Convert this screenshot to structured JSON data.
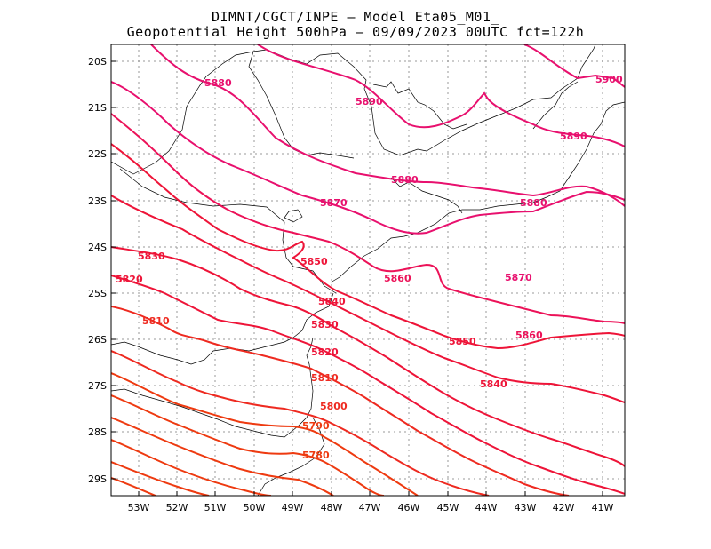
{
  "title_line1": "DIMNT/CGCT/INPE –  Model Eta05_M01_",
  "title_line2": "Geopotential Height 500hPa –  09/09/2023 00UTC fct=122h",
  "lat_ticks": [
    "20S",
    "21S",
    "22S",
    "23S",
    "24S",
    "25S",
    "26S",
    "27S",
    "28S",
    "29S"
  ],
  "lon_ticks": [
    "53W",
    "52W",
    "51W",
    "50W",
    "49W",
    "48W",
    "47W",
    "46W",
    "45W",
    "44W",
    "43W",
    "42W",
    "41W"
  ],
  "contour_labels": {
    "c5900": "5900",
    "c5890a": "5890",
    "c5890b": "5890",
    "c5880a": "5880",
    "c5880b": "5880",
    "c5880c": "5880",
    "c5870a": "5870",
    "c5870b": "5870",
    "c5860a": "5860",
    "c5860b": "5860",
    "c5850a": "5850",
    "c5850b": "5850",
    "c5840a": "5840",
    "c5840b": "5840",
    "c5830a": "5830",
    "c5830b": "5830",
    "c5820a": "5820",
    "c5820b": "5820",
    "c5810a": "5810",
    "c5810b": "5810",
    "c5800": "5800",
    "c5790": "5790",
    "c5780": "5780"
  },
  "colors": {
    "high": "#e8106e",
    "mid": "#ee1438",
    "low": "#ee3a10",
    "coast": "#000000",
    "grid": "#9a9a9a"
  }
}
